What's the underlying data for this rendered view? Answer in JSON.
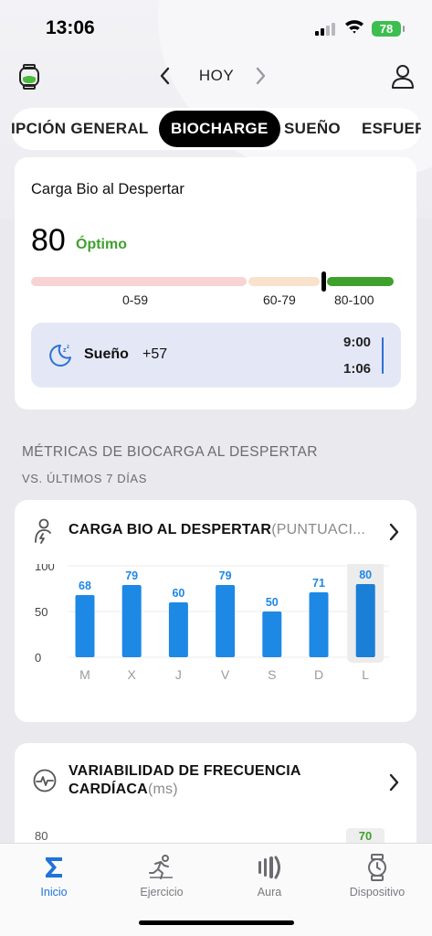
{
  "status_bar": {
    "time": "13:06",
    "battery": "78"
  },
  "top_nav": {
    "title": "HOY"
  },
  "tabs": [
    {
      "label": "IPCIÓN GENERAL"
    },
    {
      "label": "BIOCHARGE"
    },
    {
      "label": "SUEÑO"
    },
    {
      "label": "ESFUER"
    }
  ],
  "active_tab": "BIOCHARGE",
  "wake_card": {
    "title": "Carga Bio al Despertar",
    "score": "80",
    "status": "Óptimo",
    "ranges": [
      "0-59",
      "60-79",
      "80-100"
    ],
    "sleep": {
      "label": "Sueño",
      "delta": "+57",
      "end_time": "9:00",
      "start_time": "1:06"
    }
  },
  "section": {
    "title": "MÉTRICAS DE BIOCARGA AL DESPERTAR",
    "subtitle": "VS. ÚLTIMOS 7 DÍAS"
  },
  "biocharge_card": {
    "title": "CARGA BIO AL DESPERTAR",
    "unit": "(PUNTUACI..."
  },
  "chart_data": {
    "type": "bar",
    "categories": [
      "M",
      "X",
      "J",
      "V",
      "S",
      "D",
      "L"
    ],
    "values": [
      68,
      79,
      60,
      79,
      50,
      71,
      80
    ],
    "ylim": [
      0,
      100
    ],
    "yticks": [
      "100",
      "50",
      "0"
    ],
    "highlight_index": 6,
    "bar_color": "#1e88e5",
    "highlight_color": "#1a7fd6"
  },
  "hrv_card": {
    "title": "VARIABILIDAD DE FRECUENCIA CARDÍACA",
    "unit": "(ms)",
    "y_top": "80",
    "badge": "70"
  },
  "tabbar": [
    {
      "label": "Inicio",
      "icon": "sigma-icon"
    },
    {
      "label": "Ejercicio",
      "icon": "runner-icon"
    },
    {
      "label": "Aura",
      "icon": "aura-icon"
    },
    {
      "label": "Dispositivo",
      "icon": "watch-icon"
    }
  ],
  "colors": {
    "accent": "#1f73d9",
    "optimal": "#3ea12d"
  }
}
